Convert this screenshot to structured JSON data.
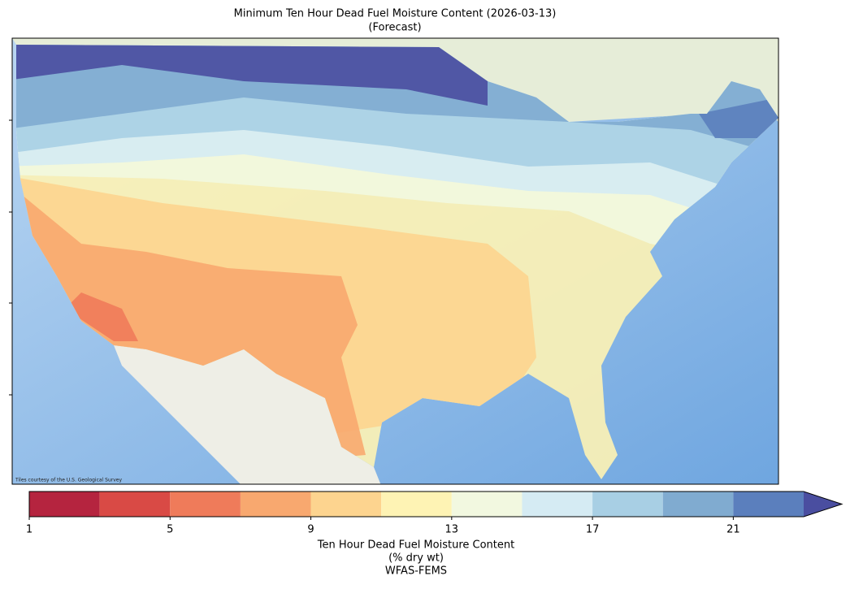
{
  "chart_data": {
    "type": "map",
    "title": "Minimum Ten Hour Dead Fuel Moisture Content (2026-03-13)",
    "subtitle": "(Forecast)",
    "attribution": "Tiles courtesy of the U.S. Geological Survey",
    "colorbar": {
      "bins": [
        1,
        3,
        5,
        7,
        9,
        11,
        13,
        15,
        17,
        19,
        21,
        23
      ],
      "colors": [
        "#b5243f",
        "#d94a45",
        "#ef7b5a",
        "#f8a86f",
        "#fdd48f",
        "#fef3b4",
        "#f2f8e0",
        "#d5ebf3",
        "#a8cfe4",
        "#80abd0",
        "#5b7fbd"
      ],
      "extend_color": "#4a4ea0",
      "ticks": [
        1,
        5,
        9,
        13,
        17,
        21
      ],
      "label": [
        "Ten Hour Dead Fuel Moisture Content",
        "(% dry wt)",
        "WFAS-FEMS"
      ]
    }
  }
}
